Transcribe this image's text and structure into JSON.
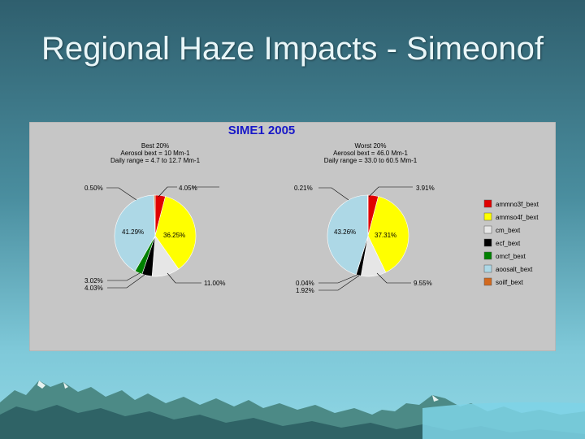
{
  "slide": {
    "title": "Regional Haze Impacts - Simeonof"
  },
  "colors": {
    "panel_bg": "#c6c6c6",
    "chart_title": "#1818c8",
    "slice": [
      "#e00000",
      "#ffff00",
      "#e6e6e6",
      "#000000",
      "#008000",
      "#add8e6",
      "#d2691e"
    ]
  },
  "chart_data": {
    "type": "pie",
    "title": "SIME1 2005",
    "legend": {
      "placement": "right",
      "entries": [
        "ammno3f_bext",
        "ammso4f_bext",
        "cm_bext",
        "ecf_bext",
        "omcf_bext",
        "aoosalt_bext",
        "soilf_bext"
      ]
    },
    "pies": [
      {
        "header": [
          "Best 20%",
          "Aerosol bext = 10 Mm-1",
          "Daily range = 4.7 to 12.7 Mm-1"
        ],
        "values": [
          4.05,
          36.25,
          11.0,
          4.03,
          3.02,
          41.29,
          0.5
        ],
        "labels": [
          "4.05%",
          "36.25%",
          "11.00%",
          "4.03%",
          "3.02%",
          "41.29%",
          "0.50%"
        ]
      },
      {
        "header": [
          "Worst 20%",
          "Aerosol bext = 46.0 Mm-1",
          "Daily range = 33.0 to 60.5 Mm-1"
        ],
        "values": [
          3.91,
          37.31,
          9.55,
          1.92,
          0.04,
          43.26,
          0.21
        ],
        "labels": [
          "3.91%",
          "37.31%",
          "9.55%",
          "1.92%",
          "0.04%",
          "43.26%",
          "0.21%"
        ]
      }
    ]
  }
}
